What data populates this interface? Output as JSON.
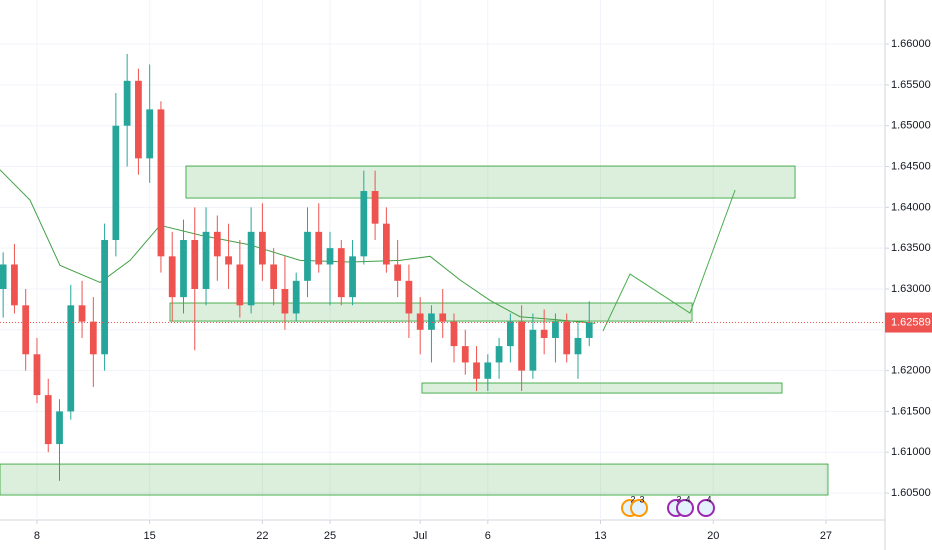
{
  "chart_data": {
    "type": "candlestick",
    "up_color": "#26a69a",
    "down_color": "#ef5350",
    "xlim": [
      -1.64,
      37.62
    ],
    "xticks": [
      {
        "value": 0,
        "label": "8"
      },
      {
        "value": 5,
        "label": "15"
      },
      {
        "value": 10,
        "label": "22"
      },
      {
        "value": 13,
        "label": "25"
      },
      {
        "value": 17,
        "label": "Jul"
      },
      {
        "value": 20,
        "label": "6"
      },
      {
        "value": 25,
        "label": "13"
      },
      {
        "value": 30,
        "label": "20"
      },
      {
        "value": 35,
        "label": "27"
      }
    ],
    "ylim": [
      1.6017,
      1.6654
    ],
    "yticks": [
      {
        "value": 1.605,
        "label": "1.60500"
      },
      {
        "value": 1.61,
        "label": "1.61000"
      },
      {
        "value": 1.615,
        "label": "1.61500"
      },
      {
        "value": 1.62,
        "label": "1.62000"
      },
      {
        "value": 1.625,
        "label": "1.62500"
      },
      {
        "value": 1.63,
        "label": "1.63000"
      },
      {
        "value": 1.635,
        "label": "1.63500"
      },
      {
        "value": 1.64,
        "label": "1.64000"
      },
      {
        "value": 1.645,
        "label": "1.64500"
      },
      {
        "value": 1.65,
        "label": "1.65000"
      },
      {
        "value": 1.655,
        "label": "1.65500"
      },
      {
        "value": 1.66,
        "label": "1.66000"
      }
    ],
    "grid": true,
    "candles": {
      "x": [
        -1.5,
        -1,
        -0.5,
        0,
        0.5,
        1,
        1.5,
        2,
        2.5,
        3,
        3.5,
        4,
        4.5,
        5,
        5.5,
        6,
        6.5,
        7,
        7.5,
        8,
        8.5,
        9,
        9.5,
        10,
        10.5,
        11,
        11.5,
        12,
        12.5,
        13,
        13.5,
        14,
        14.5,
        15,
        15.5,
        16,
        16.5,
        17,
        17.5,
        18,
        18.5,
        19,
        19.5,
        20,
        20.5,
        21,
        21.5,
        22,
        22.5,
        23,
        23.5,
        24,
        24.5
      ],
      "open": [
        1.63,
        1.633,
        1.628,
        1.622,
        1.617,
        1.611,
        1.615,
        1.628,
        1.626,
        1.622,
        1.636,
        1.65,
        1.6555,
        1.646,
        1.652,
        1.634,
        1.629,
        1.636,
        1.63,
        1.637,
        1.634,
        1.633,
        1.628,
        1.637,
        1.633,
        1.63,
        1.627,
        1.631,
        1.637,
        1.633,
        1.635,
        1.629,
        1.634,
        1.642,
        1.638,
        1.633,
        1.631,
        1.627,
        1.625,
        1.627,
        1.626,
        1.623,
        1.621,
        1.619,
        1.621,
        1.623,
        1.626,
        1.62,
        1.625,
        1.624,
        1.626,
        1.622,
        1.624
      ],
      "high": [
        1.6345,
        1.6355,
        1.63,
        1.624,
        1.619,
        1.6165,
        1.6305,
        1.631,
        1.629,
        1.638,
        1.654,
        1.6588,
        1.657,
        1.6575,
        1.653,
        1.637,
        1.6385,
        1.64,
        1.64,
        1.639,
        1.638,
        1.636,
        1.64,
        1.6405,
        1.635,
        1.634,
        1.632,
        1.64,
        1.6405,
        1.637,
        1.636,
        1.636,
        1.6445,
        1.6445,
        1.64,
        1.636,
        1.633,
        1.629,
        1.628,
        1.63,
        1.627,
        1.625,
        1.623,
        1.622,
        1.624,
        1.627,
        1.628,
        1.627,
        1.6275,
        1.627,
        1.627,
        1.626,
        1.6285
      ],
      "low": [
        1.6265,
        1.627,
        1.62,
        1.616,
        1.61,
        1.6065,
        1.614,
        1.624,
        1.618,
        1.62,
        1.634,
        1.645,
        1.644,
        1.643,
        1.632,
        1.626,
        1.627,
        1.6225,
        1.628,
        1.631,
        1.63,
        1.6265,
        1.627,
        1.631,
        1.628,
        1.625,
        1.626,
        1.629,
        1.632,
        1.628,
        1.628,
        1.628,
        1.633,
        1.636,
        1.632,
        1.629,
        1.624,
        1.622,
        1.621,
        1.624,
        1.621,
        1.6195,
        1.6175,
        1.6175,
        1.619,
        1.621,
        1.6175,
        1.619,
        1.622,
        1.621,
        1.621,
        1.619,
        1.623
      ],
      "close": [
        1.633,
        1.628,
        1.622,
        1.617,
        1.611,
        1.615,
        1.628,
        1.626,
        1.622,
        1.636,
        1.65,
        1.6555,
        1.646,
        1.652,
        1.634,
        1.629,
        1.636,
        1.63,
        1.637,
        1.634,
        1.633,
        1.628,
        1.637,
        1.633,
        1.63,
        1.627,
        1.631,
        1.637,
        1.633,
        1.635,
        1.629,
        1.634,
        1.642,
        1.638,
        1.633,
        1.631,
        1.627,
        1.625,
        1.627,
        1.626,
        1.623,
        1.621,
        1.619,
        1.621,
        1.623,
        1.626,
        1.62,
        1.625,
        1.624,
        1.626,
        1.622,
        1.624,
        1.62589
      ]
    },
    "ma": {
      "color": "#43a047",
      "x": [
        -1.64,
        -0.31,
        1.02,
        2.8,
        4.13,
        5.46,
        7.23,
        9.45,
        11.67,
        13.89,
        16.1,
        17.44,
        18.77,
        20.1,
        21.43,
        23.2,
        24.76
      ],
      "values": [
        1.6446,
        1.6409,
        1.6329,
        1.6308,
        1.6335,
        1.6378,
        1.6366,
        1.6354,
        1.6335,
        1.6333,
        1.6335,
        1.634,
        1.6311,
        1.6286,
        1.6266,
        1.6262,
        1.6258
      ]
    },
    "zone_color": "#4caf50",
    "zones": [
      {
        "xlim": [
          6.61,
          33.63
        ],
        "ylim": [
          1.64114,
          1.64506
        ]
      },
      {
        "xlim": [
          5.9,
          29.06
        ],
        "ylim": [
          1.62607,
          1.62828
        ]
      },
      {
        "xlim": [
          17.08,
          33.05
        ],
        "ylim": [
          1.61725,
          1.61848
        ]
      },
      {
        "xlim": [
          -1.64,
          35.09
        ],
        "ylim": [
          1.60476,
          1.60855
        ]
      }
    ],
    "projection": {
      "x": [
        25.11,
        26.31,
        28.97,
        30.97
      ],
      "values": [
        1.62485,
        1.63183,
        1.62705,
        1.64212
      ]
    },
    "last_price": {
      "value": 1.62589,
      "label": "1.62589",
      "color": "#ef5350"
    },
    "events": [
      "2",
      "3",
      "3",
      "4",
      "4"
    ]
  }
}
